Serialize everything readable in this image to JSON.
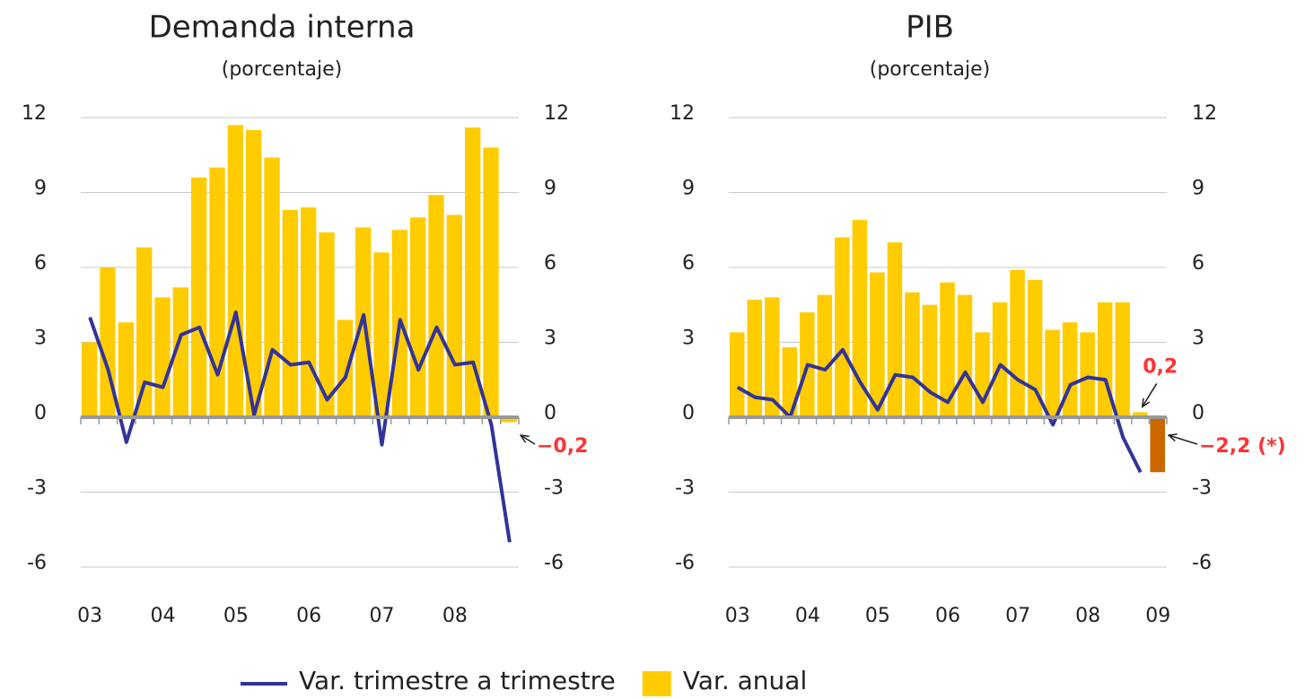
{
  "chart_data": [
    {
      "type": "bar-line",
      "title": "Demanda interna",
      "subtitle": "(porcentaje)",
      "categories": [
        "03",
        null,
        null,
        null,
        "04",
        null,
        null,
        null,
        "05",
        null,
        null,
        null,
        "06",
        null,
        null,
        null,
        "07",
        null,
        null,
        null,
        "08",
        null,
        null,
        null
      ],
      "series": [
        {
          "name": "Var. trimestre a trimestre",
          "kind": "line",
          "color": "#333399",
          "values": [
            4.0,
            1.9,
            -1.0,
            1.4,
            1.2,
            3.3,
            3.6,
            1.7,
            4.2,
            0.1,
            2.7,
            2.1,
            2.2,
            0.7,
            1.6,
            4.1,
            -1.1,
            3.9,
            1.9,
            3.6,
            2.1,
            2.2,
            -0.3,
            -5.0
          ]
        },
        {
          "name": "Var. anual",
          "kind": "bar",
          "color": "#ffcc00",
          "values": [
            3.0,
            6.0,
            3.8,
            6.8,
            4.8,
            5.2,
            9.6,
            10.0,
            11.7,
            11.5,
            10.4,
            8.3,
            8.4,
            7.4,
            3.9,
            7.6,
            6.6,
            7.5,
            8.0,
            8.9,
            8.1,
            11.6,
            10.8,
            -0.2
          ],
          "value_labels": [
            null,
            null,
            null,
            null,
            null,
            null,
            null,
            null,
            null,
            null,
            null,
            null,
            null,
            null,
            null,
            null,
            null,
            null,
            null,
            null,
            null,
            null,
            null,
            "−0,2"
          ]
        }
      ],
      "ylim": [
        -6,
        12
      ],
      "yticks": [
        -6,
        -3,
        0,
        3,
        6,
        9,
        12
      ],
      "y2lim": [
        -6,
        12
      ],
      "y2ticks": [
        -6,
        -3,
        0,
        3,
        6,
        9,
        12
      ],
      "grid": true,
      "label_color": "#ff3333"
    },
    {
      "type": "bar-line",
      "title": "PIB",
      "subtitle": "(porcentaje)",
      "categories": [
        "03",
        null,
        null,
        null,
        "04",
        null,
        null,
        null,
        "05",
        null,
        null,
        null,
        "06",
        null,
        null,
        null,
        "07",
        null,
        null,
        null,
        "08",
        null,
        null,
        null,
        "09"
      ],
      "series": [
        {
          "name": "Var. trimestre a trimestre",
          "kind": "line",
          "color": "#333399",
          "values": [
            1.2,
            0.8,
            0.7,
            0.0,
            2.1,
            1.9,
            2.7,
            1.4,
            0.3,
            1.7,
            1.6,
            1.0,
            0.6,
            1.8,
            0.6,
            2.1,
            1.5,
            1.1,
            -0.3,
            1.3,
            1.6,
            1.5,
            -0.8,
            -2.2,
            null
          ]
        },
        {
          "name": "Var. anual",
          "kind": "bar",
          "color": "#ffcc00",
          "last_bar_color": "#cc6600",
          "values": [
            3.4,
            4.7,
            4.8,
            2.8,
            4.2,
            4.9,
            7.2,
            7.9,
            5.8,
            7.0,
            5.0,
            4.5,
            5.4,
            4.9,
            3.4,
            4.6,
            5.9,
            5.5,
            3.5,
            3.8,
            3.4,
            4.6,
            4.6,
            0.2,
            -2.2
          ],
          "value_labels": [
            null,
            null,
            null,
            null,
            null,
            null,
            null,
            null,
            null,
            null,
            null,
            null,
            null,
            null,
            null,
            null,
            null,
            null,
            null,
            null,
            null,
            null,
            null,
            "0,2",
            "−2,2 (*)"
          ]
        }
      ],
      "ylim": [
        -6,
        12
      ],
      "yticks": [
        -6,
        -3,
        0,
        3,
        6,
        9,
        12
      ],
      "y2lim": [
        -6,
        12
      ],
      "y2ticks": [
        -6,
        -3,
        0,
        3,
        6,
        9,
        12
      ],
      "grid": true,
      "label_color": "#ff3333"
    }
  ]
}
